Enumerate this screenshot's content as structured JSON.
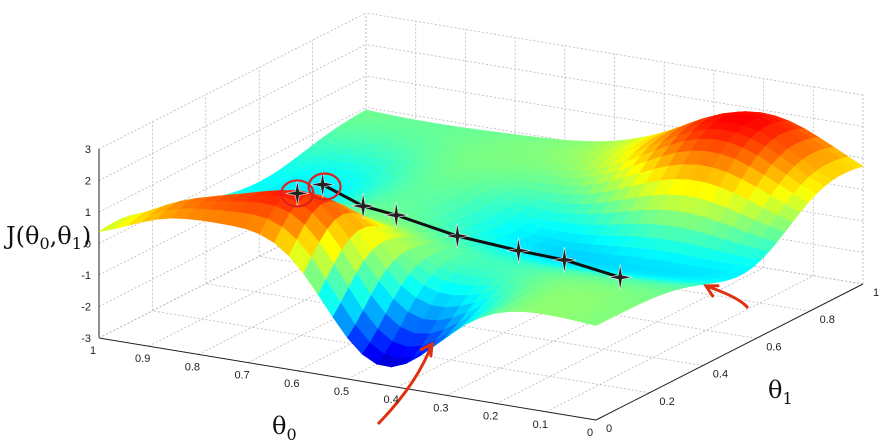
{
  "chart_data": {
    "type": "surface",
    "title": "",
    "zlabel": "J(θ0,θ1)",
    "zlabel_parts": {
      "main": "J(θ",
      "sub0": "0",
      "mid": ",θ",
      "sub1": "1",
      "end": ")"
    },
    "xlabel": "θ0",
    "xlabel_parts": {
      "main": "θ",
      "sub": "0"
    },
    "ylabel": "θ1",
    "ylabel_parts": {
      "main": "θ",
      "sub": "1"
    },
    "xlim": [
      0,
      1
    ],
    "ylim": [
      0,
      1
    ],
    "zlim": [
      -3,
      3
    ],
    "x_ticks": [
      "0",
      "0.1",
      "0.2",
      "0.3",
      "0.4",
      "0.5",
      "0.6",
      "0.7",
      "0.8",
      "0.9",
      "1"
    ],
    "y_ticks": [
      "0",
      "0.2",
      "0.4",
      "0.6",
      "0.8",
      "1"
    ],
    "z_ticks": [
      "-3",
      "-2",
      "-1",
      "0",
      "1",
      "2",
      "3"
    ],
    "grid": true,
    "colormap": "jet",
    "descent_path": {
      "color": "#111111",
      "marker": "star",
      "points": [
        {
          "x": 0.62,
          "y": 0.13,
          "z": 2.3
        },
        {
          "x": 0.56,
          "y": 0.17,
          "z": 1.6
        },
        {
          "x": 0.52,
          "y": 0.22,
          "z": 1.2
        },
        {
          "x": 0.44,
          "y": 0.3,
          "z": 0.4
        },
        {
          "x": 0.36,
          "y": 0.38,
          "z": -0.2
        },
        {
          "x": 0.3,
          "y": 0.44,
          "z": -0.6
        },
        {
          "x": 0.22,
          "y": 0.5,
          "z": -1.2
        }
      ],
      "alt_start": {
        "x": 0.66,
        "y": 0.11,
        "z": 2.0
      }
    },
    "annotations": {
      "start_circle_color": "#e02020",
      "arrow_color": "#e03010"
    }
  }
}
